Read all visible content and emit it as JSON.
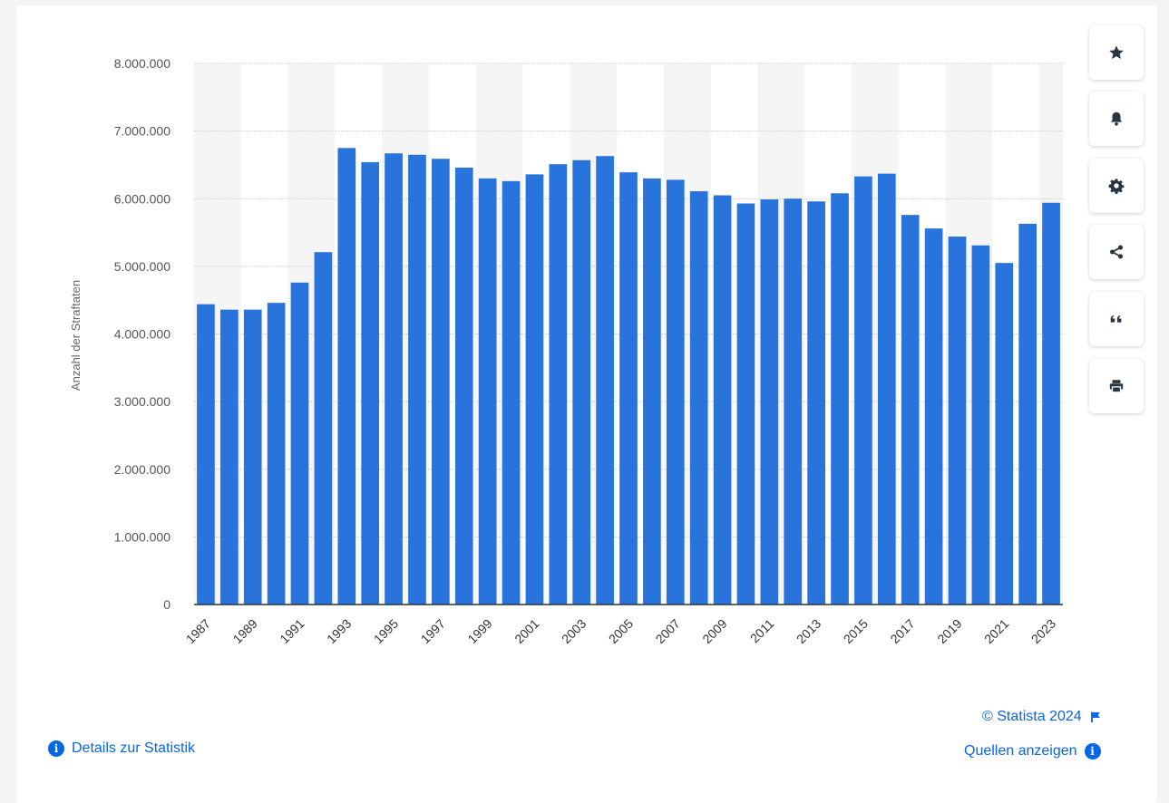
{
  "toolbar": {
    "buttons": [
      {
        "icon": "star-icon"
      },
      {
        "icon": "bell-icon"
      },
      {
        "icon": "gear-icon"
      },
      {
        "icon": "share-icon"
      },
      {
        "icon": "quote-icon"
      },
      {
        "icon": "print-icon"
      }
    ]
  },
  "footer": {
    "copyright": "© Statista 2024",
    "details_link": "Details zur Statistik",
    "sources_link": "Quellen anzeigen"
  },
  "colors": {
    "bar": "#2873dc",
    "link": "#0666e5",
    "band": "#f5f5f6"
  },
  "chart_data": {
    "type": "bar",
    "ylabel": "Anzahl der Straftaten",
    "ylim": [
      0,
      8000000
    ],
    "yticks": [
      0,
      1000000,
      2000000,
      3000000,
      4000000,
      5000000,
      6000000,
      7000000,
      8000000
    ],
    "ytick_labels": [
      "0",
      "1.000.000",
      "2.000.000",
      "3.000.000",
      "4.000.000",
      "5.000.000",
      "6.000.000",
      "7.000.000",
      "8.000.000"
    ],
    "categories": [
      "1987",
      "1988",
      "1989",
      "1990",
      "1991",
      "1992",
      "1993",
      "1994",
      "1995",
      "1996",
      "1997",
      "1998",
      "1999",
      "2000",
      "2001",
      "2002",
      "2003",
      "2004",
      "2005",
      "2006",
      "2007",
      "2008",
      "2009",
      "2010",
      "2011",
      "2012",
      "2013",
      "2014",
      "2015",
      "2016",
      "2017",
      "2018",
      "2019",
      "2020",
      "2021",
      "2022",
      "2023"
    ],
    "xtick_labels": [
      "1987",
      "1989",
      "1991",
      "1993",
      "1995",
      "1997",
      "1999",
      "2001",
      "2003",
      "2005",
      "2007",
      "2009",
      "2011",
      "2013",
      "2015",
      "2017",
      "2019",
      "2021",
      "2023"
    ],
    "values": [
      4440000,
      4360000,
      4360000,
      4460000,
      4760000,
      5210000,
      6750000,
      6540000,
      6670000,
      6650000,
      6590000,
      6460000,
      6300000,
      6260000,
      6360000,
      6510000,
      6570000,
      6630000,
      6390000,
      6300000,
      6280000,
      6110000,
      6050000,
      5930000,
      5990000,
      6000000,
      5960000,
      6080000,
      6330000,
      6370000,
      5760000,
      5560000,
      5440000,
      5310000,
      5050000,
      5630000,
      5940000
    ],
    "grid": true
  }
}
